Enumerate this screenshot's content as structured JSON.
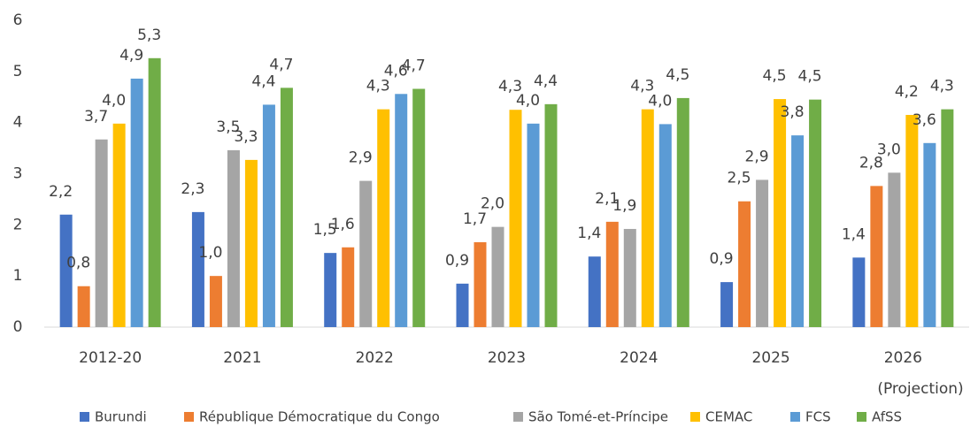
{
  "chart_data": {
    "type": "bar",
    "categories": [
      "2012-20",
      "2021",
      "2022",
      "2023",
      "2024",
      "2025",
      "2026"
    ],
    "category_note": "(Projection)",
    "series": [
      {
        "name": "Burundi",
        "color": "#4472c4",
        "values": [
          2.2,
          2.25,
          1.45,
          0.85,
          1.38,
          0.88,
          1.36
        ],
        "value_labels": [
          "2,2",
          "2,3",
          "1,5",
          "0,9",
          "1,4",
          "0,9",
          "1,4"
        ]
      },
      {
        "name": "République Démocratique du Congo",
        "color": "#ed7d31",
        "values": [
          0.8,
          1.0,
          1.56,
          1.66,
          2.06,
          2.46,
          2.76
        ],
        "value_labels": [
          "0,8",
          "1,0",
          "1,6",
          "1,7",
          "2,1",
          "2,5",
          "2,8"
        ]
      },
      {
        "name": "São Tomé-et-Príncipe",
        "color": "#a5a5a5",
        "values": [
          3.67,
          3.46,
          2.86,
          1.96,
          1.92,
          2.88,
          3.02
        ],
        "value_labels": [
          "3,7",
          "3,5",
          "2,9",
          "2,0",
          "1,9",
          "2,9",
          "3,0"
        ]
      },
      {
        "name": "CEMAC",
        "color": "#ffc000",
        "values": [
          3.98,
          3.27,
          4.26,
          4.25,
          4.26,
          4.46,
          4.15
        ],
        "value_labels": [
          "4,0",
          "3,3",
          "4,3",
          "4,3",
          "4,3",
          "4,5",
          "4,2"
        ]
      },
      {
        "name": "FCS",
        "color": "#5b9bd5",
        "values": [
          4.86,
          4.35,
          4.56,
          3.98,
          3.97,
          3.75,
          3.6
        ],
        "value_labels": [
          "4,9",
          "4,4",
          "4,6",
          "4,0",
          "4,0",
          "3,8",
          "3,6"
        ]
      },
      {
        "name": "AfSS",
        "color": "#70ad47",
        "values": [
          5.26,
          4.68,
          4.66,
          4.36,
          4.48,
          4.45,
          4.26
        ],
        "value_labels": [
          "5,3",
          "4,7",
          "4,7",
          "4,4",
          "4,5",
          "4,5",
          "4,3"
        ]
      }
    ],
    "ylim": [
      0,
      6
    ],
    "yticks": [
      0,
      1,
      2,
      3,
      4,
      5,
      6
    ],
    "grid": false,
    "legend": "bottom"
  }
}
